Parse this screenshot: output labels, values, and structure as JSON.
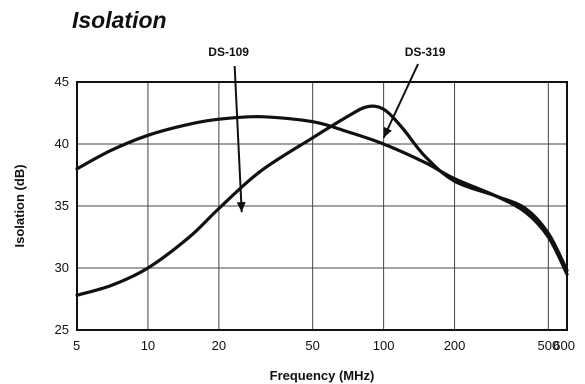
{
  "chart_data": {
    "type": "line",
    "title": "Isolation",
    "xlabel": "Frequency (MHz)",
    "ylabel": "Isolation (dB)",
    "x_scale": "log",
    "xlim": [
      5,
      600
    ],
    "ylim": [
      25,
      45
    ],
    "x_ticks": [
      5,
      10,
      20,
      50,
      100,
      200,
      500,
      600
    ],
    "x_tick_labels": [
      "5",
      "10",
      "20",
      "50",
      "100",
      "200",
      "500",
      "600"
    ],
    "y_ticks": [
      25,
      30,
      35,
      40,
      45
    ],
    "y_tick_labels": [
      "25",
      "30",
      "35",
      "40",
      "45"
    ],
    "grid": true,
    "legend": "none",
    "line_color": "#111111",
    "series": [
      {
        "name": "DS-109",
        "x": [
          5,
          7,
          10,
          15,
          20,
          30,
          50,
          70,
          100,
          150,
          200,
          300,
          400,
          500,
          600
        ],
        "y": [
          38,
          39.5,
          40.7,
          41.6,
          42,
          42.2,
          41.8,
          41,
          40,
          38.5,
          37.2,
          35.8,
          34.5,
          32.5,
          29.5
        ]
      },
      {
        "name": "DS-319",
        "x": [
          5,
          7,
          10,
          15,
          20,
          30,
          50,
          70,
          85,
          100,
          120,
          150,
          200,
          300,
          400,
          500,
          600
        ],
        "y": [
          27.8,
          28.6,
          30,
          32.5,
          34.8,
          37.8,
          40.5,
          42.2,
          43,
          42.8,
          41.3,
          39,
          37,
          35.8,
          34.8,
          32.8,
          29.8
        ]
      }
    ],
    "annotations": [
      {
        "text": "DS-109",
        "series": "DS-109",
        "points_to_x": 25,
        "points_to_y": 34.5
      },
      {
        "text": "DS-319",
        "series": "DS-319",
        "points_to_x": 100,
        "points_to_y": 40.5
      }
    ]
  }
}
